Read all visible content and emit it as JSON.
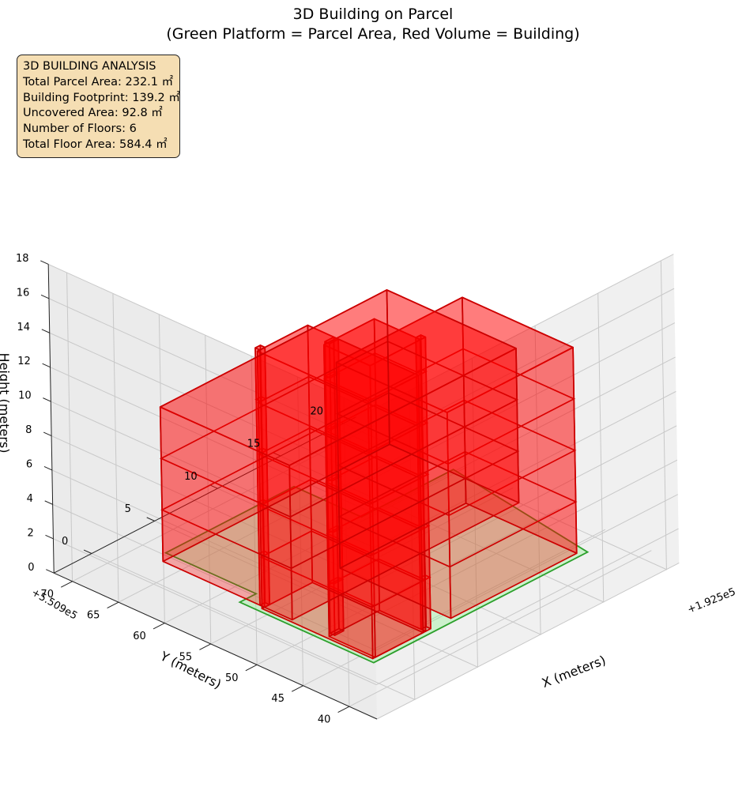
{
  "chart_data": {
    "type": "3d-polygons",
    "title": "3D Building on Parcel",
    "subtitle": "(Green Platform = Parcel Area, Red Volume = Building)",
    "xlabel": "X (meters)",
    "ylabel": "Y (meters)",
    "zlabel": "Height (meters)",
    "x_offset_label": "+1.925e5",
    "y_offset_label": "+5.509e5",
    "x_ticks": [
      0,
      5,
      10,
      15,
      20
    ],
    "y_ticks": [
      40,
      45,
      50,
      55,
      60,
      65,
      70
    ],
    "z_ticks": [
      0,
      2,
      4,
      6,
      8,
      10,
      12,
      14,
      16,
      18
    ],
    "xlim": [
      -3,
      21
    ],
    "ylim": [
      37,
      72
    ],
    "zlim": [
      0,
      18
    ],
    "parcel": {
      "color": "#2ca02c",
      "fill": "#90ee90",
      "polygon": [
        [
          1.5,
          43.5
        ],
        [
          18.5,
          43.5
        ],
        [
          20.3,
          60.5
        ],
        [
          13.0,
          60.5
        ],
        [
          13.0,
          67.8
        ],
        [
          2.8,
          67.8
        ],
        [
          2.8,
          58.0
        ],
        [
          1.5,
          58.0
        ]
      ]
    },
    "building": {
      "color": "#ff0000",
      "edge_color": "#cc0000",
      "floors": 6,
      "floor_height": 3,
      "volumes": [
        {
          "footprint": [
            [
              2,
              53
            ],
            [
              20,
              53
            ],
            [
              20,
              67
            ],
            [
              2,
              67
            ]
          ],
          "z": [
            0,
            9
          ]
        },
        {
          "footprint": [
            [
              1.8,
              44
            ],
            [
              5.8,
              44
            ],
            [
              5.8,
              56
            ],
            [
              1.8,
              56
            ]
          ],
          "z": [
            0,
            15
          ]
        },
        {
          "footprint": [
            [
              8,
              44
            ],
            [
              18,
              44
            ],
            [
              18,
              56
            ],
            [
              8,
              56
            ]
          ],
          "z": [
            0,
            12
          ]
        },
        {
          "footprint": [
            [
              2,
              44
            ],
            [
              6,
              44
            ],
            [
              6,
              49
            ],
            [
              2,
              49
            ]
          ],
          "z": [
            0,
            17
          ]
        },
        {
          "footprint": [
            [
              2.3,
              48.8
            ],
            [
              3.0,
              48.8
            ],
            [
              3.0,
              49.3
            ],
            [
              2.3,
              49.3
            ]
          ],
          "z": [
            0,
            17
          ]
        },
        {
          "footprint": [
            [
              2,
              56
            ],
            [
              2.4,
              56
            ],
            [
              2.4,
              56.5
            ],
            [
              2,
              56.5
            ]
          ],
          "z": [
            0,
            15
          ]
        },
        {
          "footprint": [
            [
              6,
              44
            ],
            [
              6.4,
              44
            ],
            [
              6.4,
              44.5
            ],
            [
              6,
              44.5
            ]
          ],
          "z": [
            0,
            17
          ]
        }
      ]
    },
    "info_box": {
      "heading": "3D BUILDING ANALYSIS",
      "total_parcel_area": "Total Parcel Area: 232.1 ㎡",
      "building_footprint": "Building Footprint: 139.2 ㎡",
      "uncovered_area": "Uncovered Area: 92.8 ㎡",
      "number_of_floors": "Number of Floors: 6",
      "total_floor_area": "Total Floor Area: 584.4 ㎡",
      "background": "#f5deb3"
    },
    "grid": true
  }
}
